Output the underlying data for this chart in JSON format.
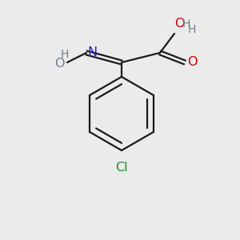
{
  "background_color": "#ebebeb",
  "bond_color": "#1a1a1a",
  "atom_colors": {
    "O": "#cc0000",
    "N": "#2222cc",
    "Cl": "#228822",
    "HO": "#708090",
    "H": "#708090"
  },
  "figsize": [
    3.0,
    3.0
  ],
  "dpi": 100
}
